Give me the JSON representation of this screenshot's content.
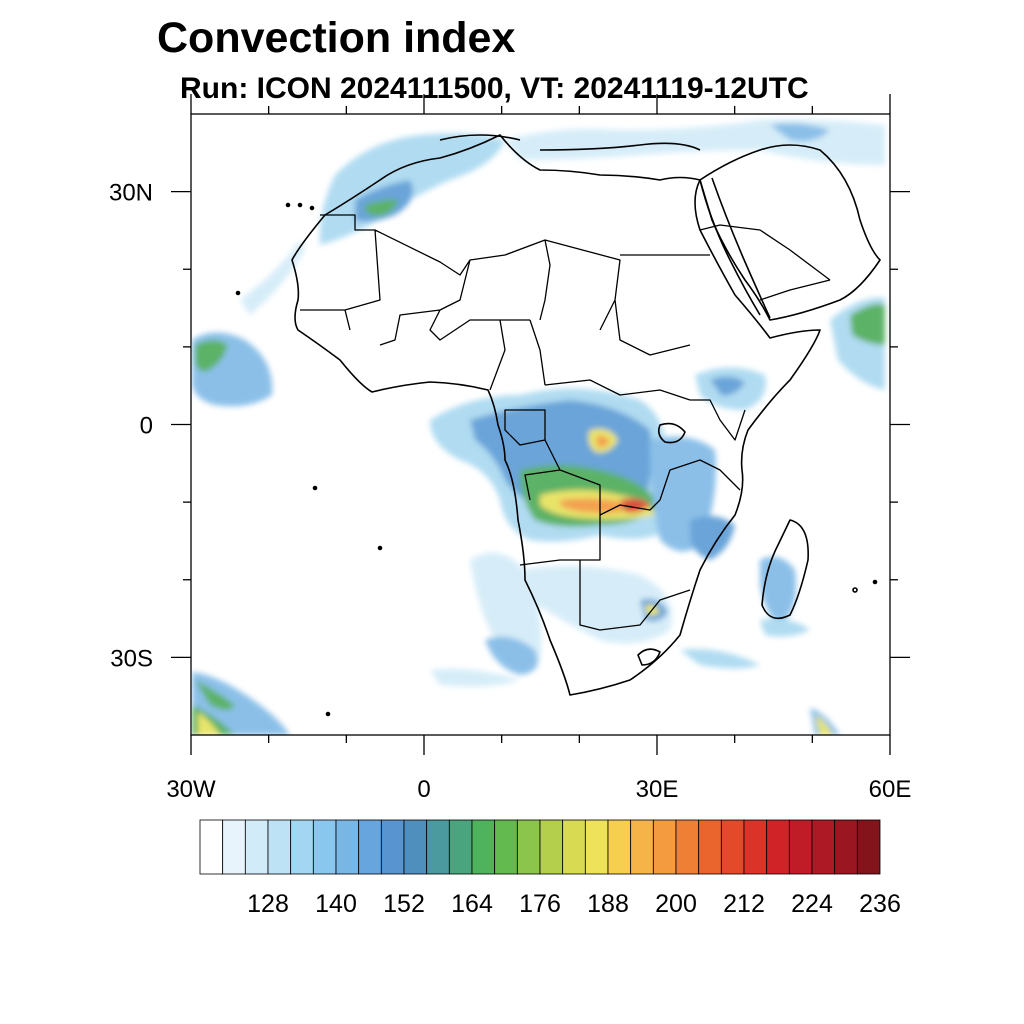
{
  "title": "Convection index",
  "subtitle": "Run: ICON 2024111500,  VT: 20241119-12UTC",
  "map": {
    "lon_range": [
      -30,
      60
    ],
    "lat_range": [
      -40,
      40
    ],
    "x_ticks": [
      {
        "lon": -30,
        "label": "30W"
      },
      {
        "lon": 0,
        "label": "0"
      },
      {
        "lon": 30,
        "label": "30E"
      },
      {
        "lon": 60,
        "label": "60E"
      }
    ],
    "y_ticks": [
      {
        "lat": 30,
        "label": "30N"
      },
      {
        "lat": 0,
        "label": "0"
      },
      {
        "lat": -30,
        "label": "30S"
      }
    ],
    "minor_lon_ticks": [
      -20,
      -10,
      10,
      20,
      40,
      50
    ],
    "minor_lat_ticks": [
      20,
      10,
      -10,
      -20
    ],
    "colors": {
      "land_outline": "#000000",
      "light_blue": "#a8d8f0",
      "mid_blue": "#7fb9e6",
      "blue": "#5a9bd5",
      "green": "#4caa56",
      "yellow": "#e6e25a",
      "orange": "#f3983c",
      "red": "#d93a2c"
    }
  },
  "colorbar": {
    "colors": [
      "#ffffff",
      "#e8f4fb",
      "#d2ebf8",
      "#bde2f6",
      "#a3d6f3",
      "#8ac7ee",
      "#78b6e6",
      "#66a5dd",
      "#5894cf",
      "#4f8fbe",
      "#4a9aa0",
      "#4aa57e",
      "#4fb25d",
      "#63bb4f",
      "#8bc54c",
      "#b3cf4c",
      "#d8da52",
      "#eee25a",
      "#f6cf51",
      "#f6b348",
      "#f49a3f",
      "#f07f36",
      "#ea652e",
      "#e34a29",
      "#dc3328",
      "#cf2328",
      "#c01c27",
      "#ad1a25",
      "#9a1721",
      "#84141c"
    ],
    "labels": [
      "128",
      "140",
      "152",
      "164",
      "176",
      "188",
      "200",
      "212",
      "224",
      "236"
    ]
  }
}
